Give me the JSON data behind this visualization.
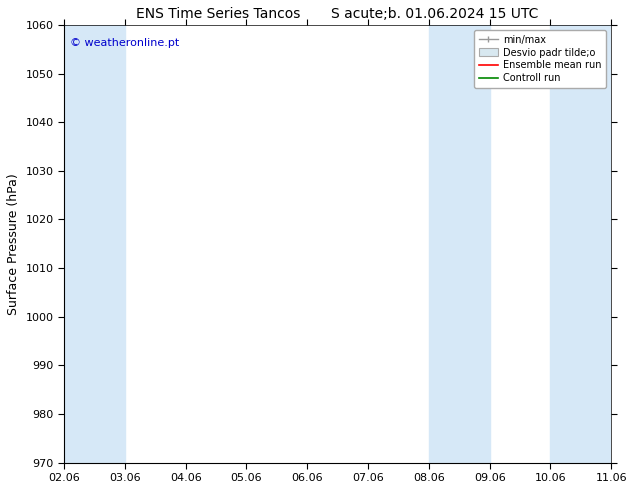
{
  "title": "ENS Time Series Tancos       S acute;b. 01.06.2024 15 UTC",
  "ylabel": "Surface Pressure (hPa)",
  "ylim": [
    970,
    1060
  ],
  "yticks": [
    970,
    980,
    990,
    1000,
    1010,
    1020,
    1030,
    1040,
    1050,
    1060
  ],
  "xtick_labels": [
    "02.06",
    "03.06",
    "04.06",
    "05.06",
    "06.06",
    "07.06",
    "08.06",
    "09.06",
    "10.06",
    "11.06"
  ],
  "bg_color": "#ffffff",
  "band_color": "#d6e8f7",
  "shaded_bands": [
    {
      "xstart": 0,
      "xend": 1
    },
    {
      "xstart": 6,
      "xend": 7
    },
    {
      "xstart": 8,
      "xend": 9
    }
  ],
  "watermark_text": "© weatheronline.pt",
  "watermark_color": "#0000cc",
  "border_color": "#000000",
  "tick_color": "#000000",
  "legend_labels": [
    "min/max",
    "Desvio padr tilde;o",
    "Ensemble mean run",
    "Controll run"
  ],
  "legend_colors": [
    "#999999",
    "#cccccc",
    "#ff0000",
    "#008800"
  ],
  "font_size_title": 10,
  "font_size_axis": 8,
  "font_size_legend": 7,
  "font_size_ylabel": 9
}
